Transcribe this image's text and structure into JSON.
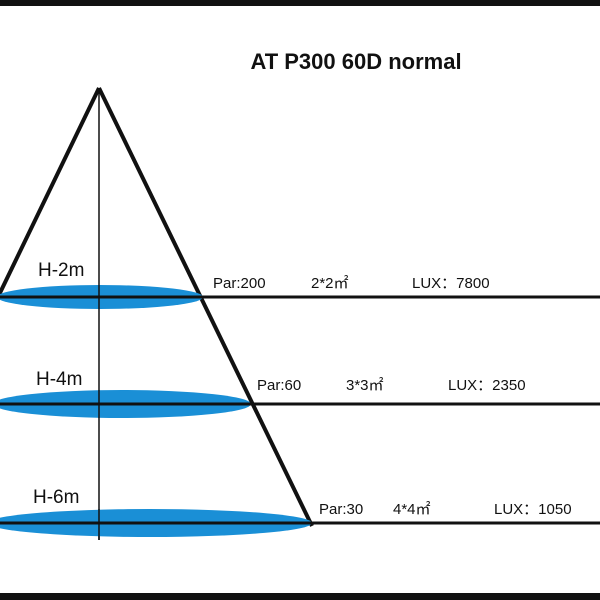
{
  "title": "AT P300 60D normal",
  "beam_color": "#1a8fd6",
  "levels": [
    {
      "height": "H-2m",
      "par": "Par:200",
      "size": "2*2㎡",
      "lux": "LUX：7800"
    },
    {
      "height": "H-4m",
      "par": "Par:60",
      "size": "3*3㎡",
      "lux": "LUX：2350"
    },
    {
      "height": "H-6m",
      "par": "Par:30",
      "size": "4*4㎡",
      "lux": "LUX：1050"
    }
  ]
}
